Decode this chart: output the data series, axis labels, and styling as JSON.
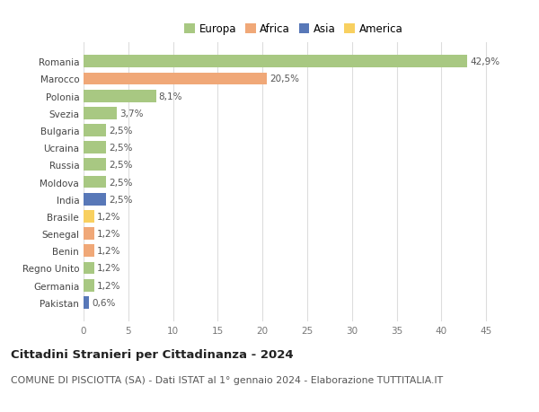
{
  "countries": [
    "Romania",
    "Marocco",
    "Polonia",
    "Svezia",
    "Bulgaria",
    "Ucraina",
    "Russia",
    "Moldova",
    "India",
    "Brasile",
    "Senegal",
    "Benin",
    "Regno Unito",
    "Germania",
    "Pakistan"
  ],
  "values": [
    42.9,
    20.5,
    8.1,
    3.7,
    2.5,
    2.5,
    2.5,
    2.5,
    2.5,
    1.2,
    1.2,
    1.2,
    1.2,
    1.2,
    0.6
  ],
  "labels": [
    "42,9%",
    "20,5%",
    "8,1%",
    "3,7%",
    "2,5%",
    "2,5%",
    "2,5%",
    "2,5%",
    "2,5%",
    "1,2%",
    "1,2%",
    "1,2%",
    "1,2%",
    "1,2%",
    "0,6%"
  ],
  "continents": [
    "Europa",
    "Africa",
    "Europa",
    "Europa",
    "Europa",
    "Europa",
    "Europa",
    "Europa",
    "Asia",
    "America",
    "Africa",
    "Africa",
    "Europa",
    "Europa",
    "Asia"
  ],
  "colors": {
    "Europa": "#a8c882",
    "Africa": "#f0a878",
    "Asia": "#5878b8",
    "America": "#f8d060"
  },
  "title": "Cittadini Stranieri per Cittadinanza - 2024",
  "subtitle": "COMUNE DI PISCIOTTA (SA) - Dati ISTAT al 1° gennaio 2024 - Elaborazione TUTTITALIA.IT",
  "xlim": [
    0,
    47
  ],
  "xticks": [
    0,
    5,
    10,
    15,
    20,
    25,
    30,
    35,
    40,
    45
  ],
  "background_color": "#ffffff",
  "grid_color": "#dddddd",
  "bar_height": 0.72,
  "title_fontsize": 9.5,
  "subtitle_fontsize": 7.8,
  "tick_fontsize": 7.5,
  "label_fontsize": 7.5,
  "legend_fontsize": 8.5,
  "legend_order": [
    "Europa",
    "Africa",
    "Asia",
    "America"
  ]
}
